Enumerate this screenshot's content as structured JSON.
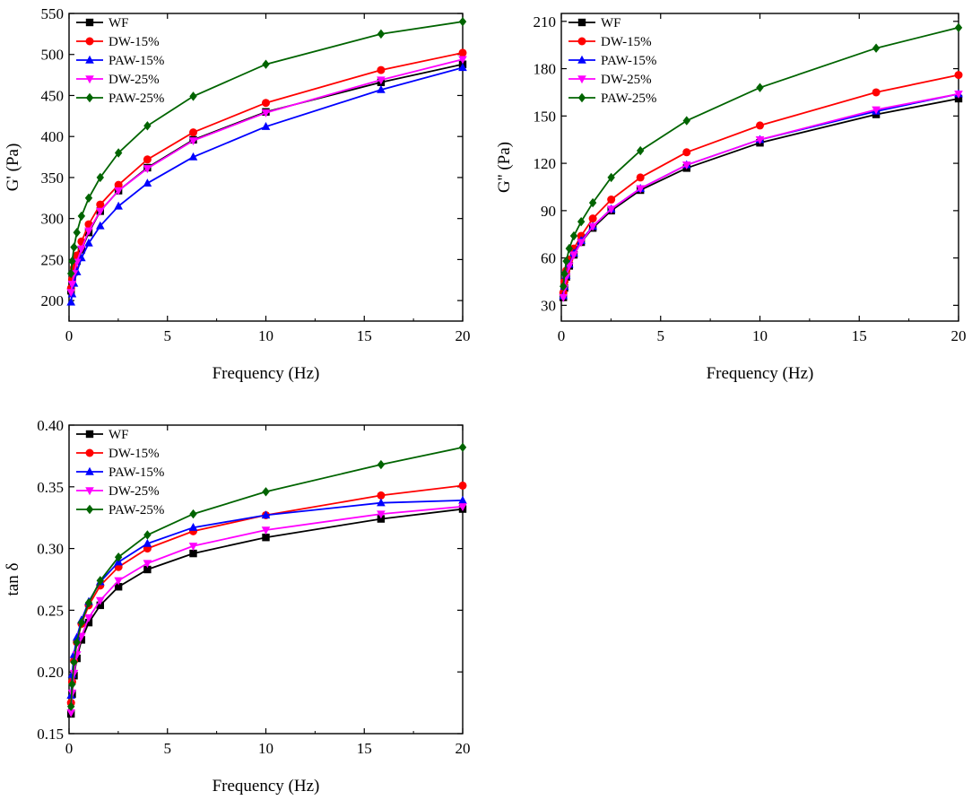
{
  "chart_data": [
    {
      "type": "line",
      "xlabel": "Frequency (Hz)",
      "ylabel": "G' (Pa)",
      "xlim": [
        0,
        20
      ],
      "ylim": [
        175,
        550
      ],
      "xticks": [
        0,
        5,
        10,
        15,
        20
      ],
      "xtick_labels": [
        "0",
        "5",
        "10",
        "15",
        "20"
      ],
      "yticks": [
        200,
        250,
        300,
        350,
        400,
        450,
        500,
        550
      ],
      "ytick_labels": [
        "200",
        "250",
        "300",
        "350",
        "400",
        "450",
        "500",
        "550"
      ],
      "legend_position": "top-left",
      "x": [
        0.1,
        0.158,
        0.251,
        0.398,
        0.631,
        1.0,
        1.585,
        2.512,
        3.981,
        6.31,
        10.0,
        15.85,
        20.0
      ],
      "series": [
        {
          "name": "WF",
          "color": "#000000",
          "marker": "square",
          "values": [
            212,
            222,
            235,
            248,
            262,
            283,
            309,
            334,
            362,
            396,
            430,
            466,
            488
          ]
        },
        {
          "name": "DW-15%",
          "color": "#ff0000",
          "marker": "circle",
          "values": [
            215,
            226,
            240,
            255,
            272,
            293,
            317,
            341,
            372,
            405,
            441,
            481,
            502
          ]
        },
        {
          "name": "PAW-15%",
          "color": "#0000ff",
          "marker": "triangle-up",
          "values": [
            198,
            208,
            221,
            235,
            252,
            270,
            291,
            315,
            343,
            375,
            412,
            457,
            484
          ]
        },
        {
          "name": "DW-25%",
          "color": "#ff00ff",
          "marker": "triangle-down",
          "values": [
            210,
            220,
            233,
            247,
            263,
            285,
            309,
            334,
            361,
            395,
            429,
            469,
            494
          ]
        },
        {
          "name": "PAW-25%",
          "color": "#006400",
          "marker": "diamond",
          "values": [
            233,
            248,
            265,
            283,
            303,
            325,
            350,
            380,
            413,
            449,
            488,
            525,
            540
          ]
        }
      ]
    },
    {
      "type": "line",
      "xlabel": "Frequency (Hz)",
      "ylabel": "G'' (Pa)",
      "xlim": [
        0,
        20
      ],
      "ylim": [
        20,
        215
      ],
      "xticks": [
        0,
        5,
        10,
        15,
        20
      ],
      "xtick_labels": [
        "0",
        "5",
        "10",
        "15",
        "20"
      ],
      "yticks": [
        30,
        60,
        90,
        120,
        150,
        180,
        210
      ],
      "ytick_labels": [
        "30",
        "60",
        "90",
        "120",
        "150",
        "180",
        "210"
      ],
      "legend_position": "top-left",
      "x": [
        0.1,
        0.158,
        0.251,
        0.398,
        0.631,
        1.0,
        1.585,
        2.512,
        3.981,
        6.31,
        10.0,
        15.85,
        20.0
      ],
      "series": [
        {
          "name": "WF",
          "color": "#000000",
          "marker": "square",
          "values": [
            35,
            41,
            48,
            55,
            62,
            70,
            79,
            90,
            103,
            117,
            133,
            151,
            161
          ]
        },
        {
          "name": "DW-15%",
          "color": "#ff0000",
          "marker": "circle",
          "values": [
            38,
            45,
            52,
            59,
            66,
            74,
            85,
            97,
            111,
            127,
            144,
            165,
            176
          ]
        },
        {
          "name": "PAW-15%",
          "color": "#0000ff",
          "marker": "triangle-up",
          "values": [
            36,
            42,
            49,
            56,
            63,
            71,
            80,
            91,
            104,
            119,
            135,
            153,
            164
          ]
        },
        {
          "name": "DW-25%",
          "color": "#ff00ff",
          "marker": "triangle-down",
          "values": [
            35,
            41,
            48,
            55,
            62,
            70,
            80,
            91,
            104,
            119,
            135,
            154,
            164
          ]
        },
        {
          "name": "PAW-25%",
          "color": "#006400",
          "marker": "diamond",
          "values": [
            42,
            50,
            58,
            66,
            74,
            83,
            95,
            111,
            128,
            147,
            168,
            193,
            206
          ]
        }
      ]
    },
    {
      "type": "line",
      "xlabel": "Frequency (Hz)",
      "ylabel": "tan δ",
      "xlim": [
        0,
        20
      ],
      "ylim": [
        0.15,
        0.4
      ],
      "xticks": [
        0,
        5,
        10,
        15,
        20
      ],
      "xtick_labels": [
        "0",
        "5",
        "10",
        "15",
        "20"
      ],
      "yticks": [
        0.15,
        0.2,
        0.25,
        0.3,
        0.35,
        0.4
      ],
      "ytick_labels": [
        "0.15",
        "0.20",
        "0.25",
        "0.30",
        "0.35",
        "0.40"
      ],
      "legend_position": "top-left",
      "x": [
        0.1,
        0.158,
        0.251,
        0.398,
        0.631,
        1.0,
        1.585,
        2.512,
        3.981,
        6.31,
        10.0,
        15.85,
        20.0
      ],
      "series": [
        {
          "name": "WF",
          "color": "#000000",
          "marker": "square",
          "values": [
            0.166,
            0.182,
            0.197,
            0.211,
            0.226,
            0.24,
            0.254,
            0.269,
            0.283,
            0.296,
            0.309,
            0.324,
            0.332
          ]
        },
        {
          "name": "DW-15%",
          "color": "#ff0000",
          "marker": "circle",
          "values": [
            0.175,
            0.192,
            0.209,
            0.224,
            0.239,
            0.254,
            0.27,
            0.285,
            0.3,
            0.314,
            0.327,
            0.343,
            0.351
          ]
        },
        {
          "name": "PAW-15%",
          "color": "#0000ff",
          "marker": "triangle-up",
          "values": [
            0.181,
            0.198,
            0.214,
            0.228,
            0.242,
            0.257,
            0.273,
            0.289,
            0.304,
            0.317,
            0.327,
            0.337,
            0.339
          ]
        },
        {
          "name": "DW-25%",
          "color": "#ff00ff",
          "marker": "triangle-down",
          "values": [
            0.167,
            0.183,
            0.199,
            0.214,
            0.229,
            0.244,
            0.258,
            0.274,
            0.288,
            0.302,
            0.315,
            0.328,
            0.334
          ]
        },
        {
          "name": "PAW-25%",
          "color": "#006400",
          "marker": "diamond",
          "values": [
            0.172,
            0.19,
            0.208,
            0.224,
            0.24,
            0.256,
            0.274,
            0.293,
            0.311,
            0.328,
            0.346,
            0.368,
            0.382
          ]
        }
      ]
    }
  ]
}
